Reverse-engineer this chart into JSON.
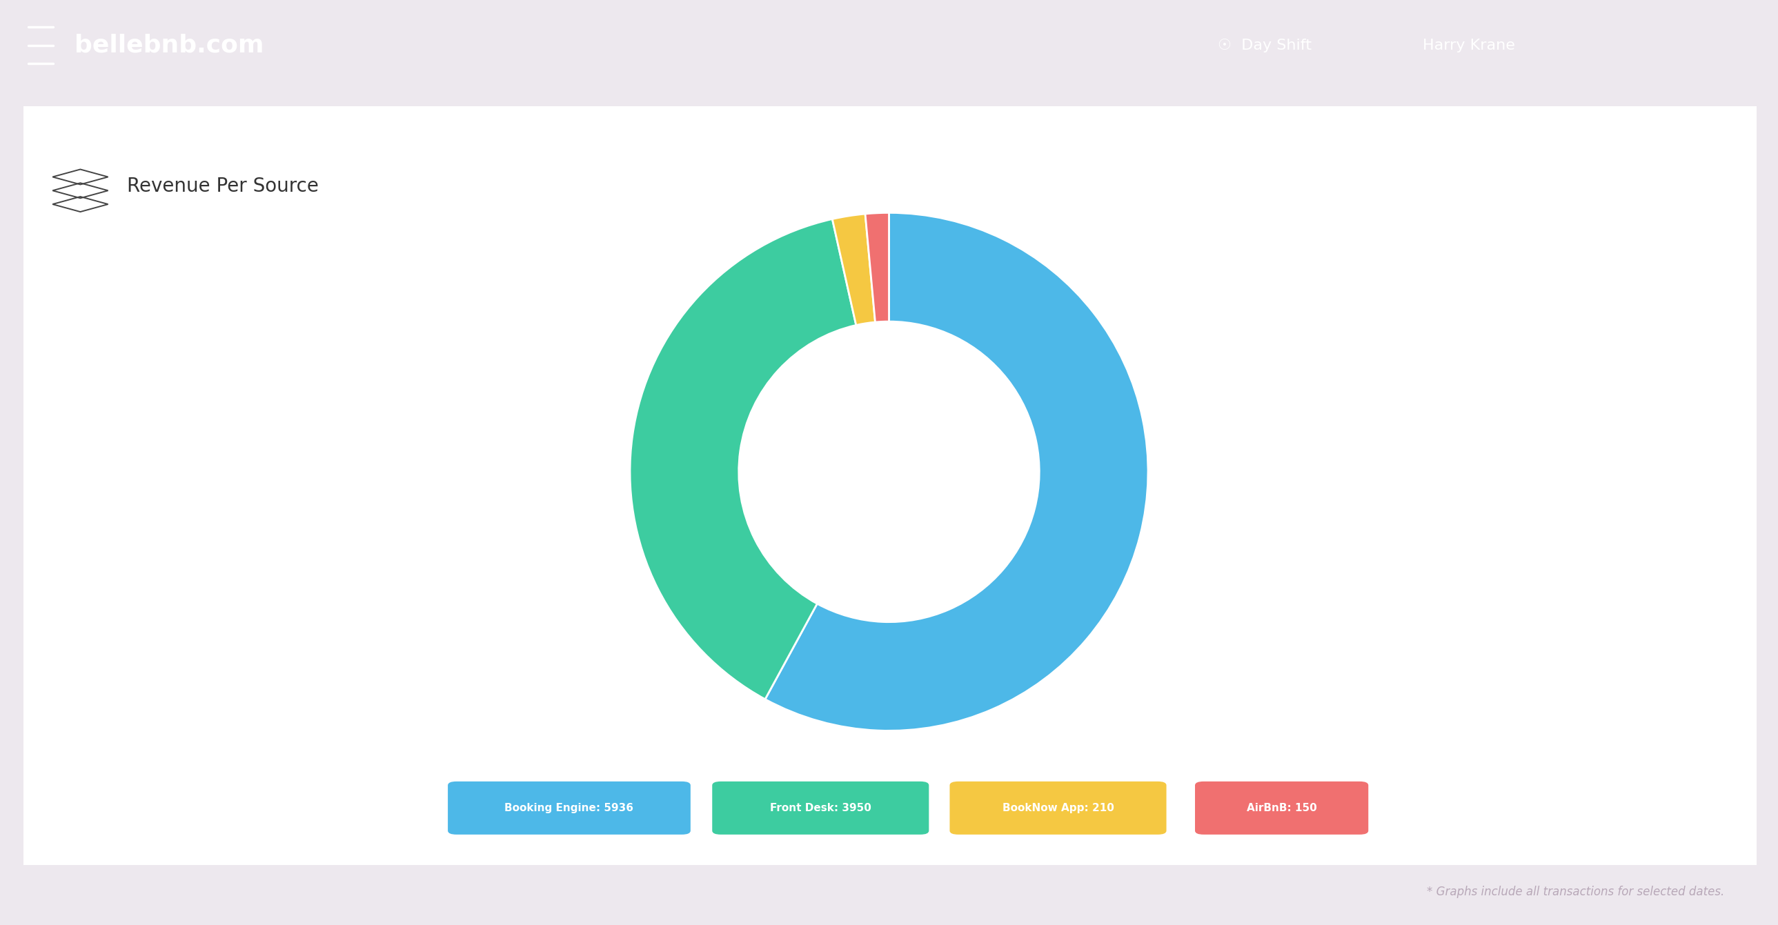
{
  "title": "Revenue Per Source",
  "values": [
    5936,
    3950,
    210,
    150
  ],
  "labels": [
    "Booking Engine: 5936",
    "Front Desk: 3950",
    "BookNow App: 210",
    "AirBnB: 150"
  ],
  "colors": [
    "#4DB8E8",
    "#3DCCA0",
    "#F5C842",
    "#F07070"
  ],
  "header_bg": "#6B3FA0",
  "header_text": "bellebnb.com",
  "card_bg": "#FFFFFF",
  "outer_bg": "#EDE8EE",
  "footer_text": "* Graphs include all transactions for selected dates.",
  "wedge_edge_color": "#FFFFFF",
  "title_fontsize": 20,
  "legend_fontsize": 11,
  "footer_fontsize": 12,
  "header_fontsize": 26,
  "nav_text": "Day Shift    Harry Krane"
}
